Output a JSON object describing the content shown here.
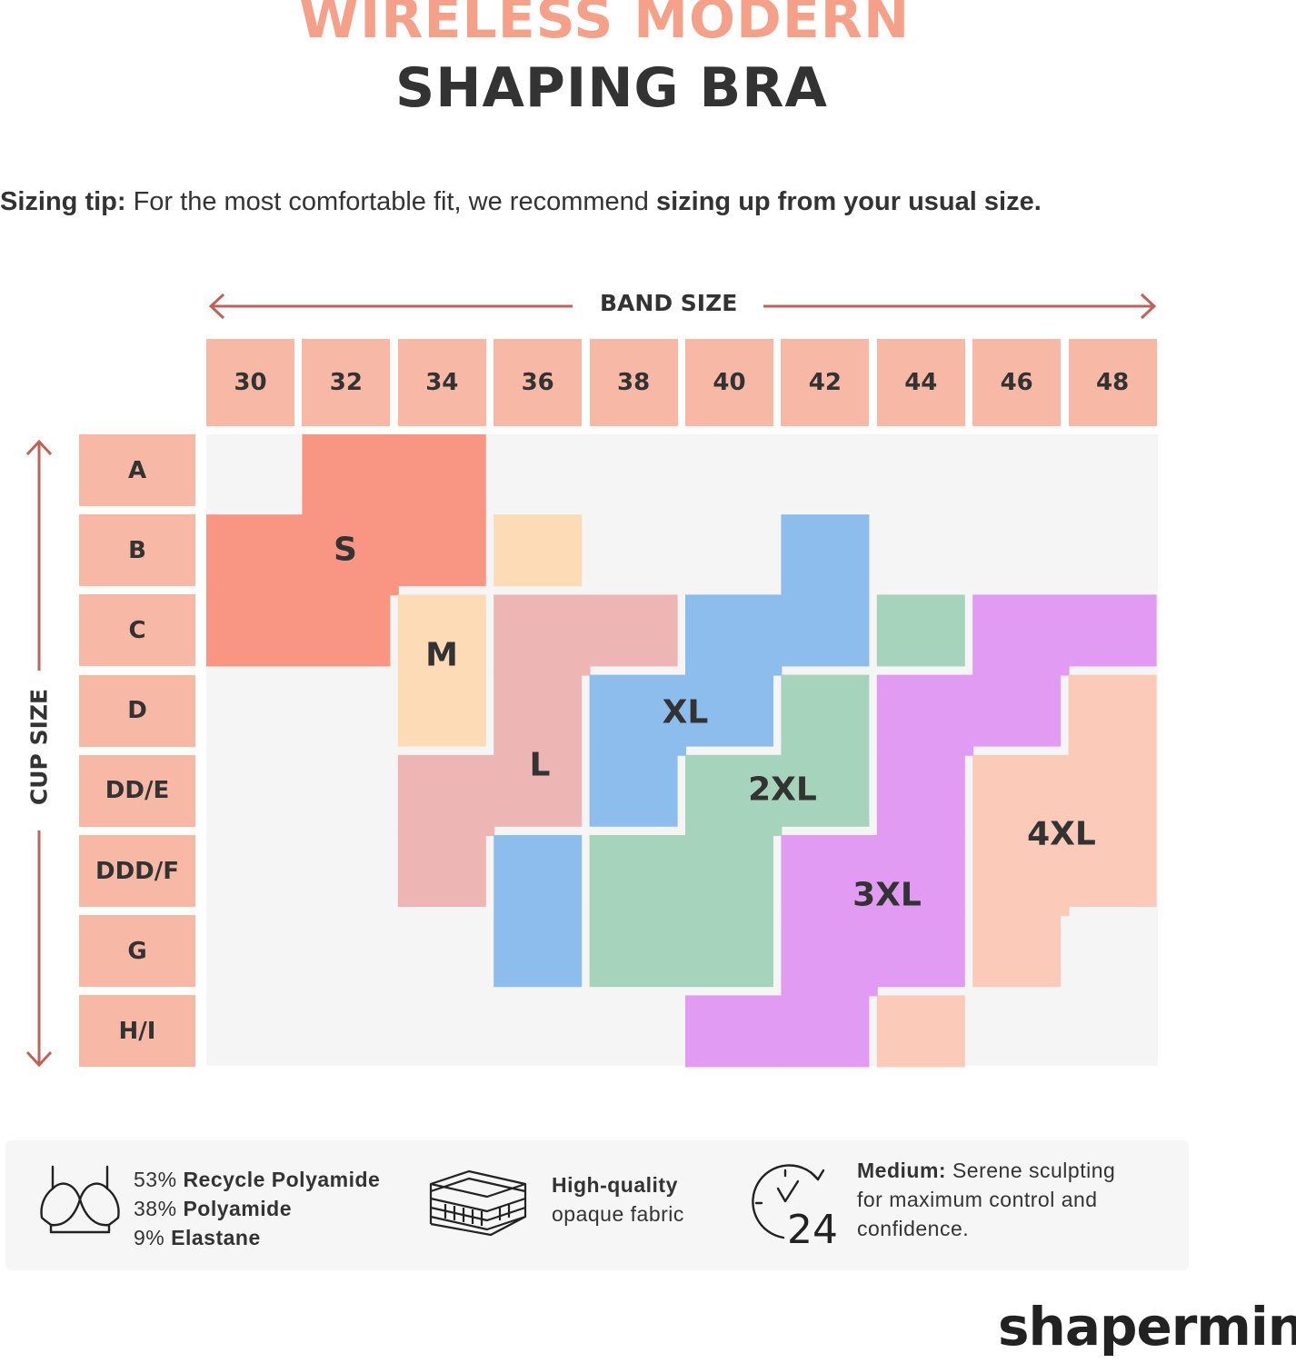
{
  "title": {
    "line1": "WIRELESS MODERN",
    "line2": "SHAPING BRA"
  },
  "sizing_tip": {
    "label": "Sizing tip:",
    "text": " For the most comfortable fit, we recommend ",
    "emphasis": "sizing up from your usual size."
  },
  "band_axis_label": "BAND SIZE",
  "cup_axis_label": "CUP SIZE",
  "band_sizes": [
    "30",
    "32",
    "34",
    "36",
    "38",
    "40",
    "42",
    "44",
    "46",
    "48"
  ],
  "cup_sizes": [
    "A",
    "B",
    "C",
    "D",
    "DD/E",
    "DDD/F",
    "G",
    "H/I"
  ],
  "size_zones": [
    {
      "label": "S",
      "color": "#f99683",
      "cells": [
        [
          "32",
          "A"
        ],
        [
          "34",
          "A"
        ],
        [
          "30",
          "B"
        ],
        [
          "32",
          "B"
        ],
        [
          "34",
          "B"
        ],
        [
          "30",
          "C"
        ],
        [
          "32",
          "C"
        ]
      ]
    },
    {
      "label": "M",
      "color": "#fddbb6",
      "cells": [
        [
          "36",
          "B"
        ],
        [
          "34",
          "C"
        ],
        [
          "34",
          "D"
        ]
      ]
    },
    {
      "label": "L",
      "color": "#edb6b4",
      "cells": [
        [
          "36",
          "C"
        ],
        [
          "38",
          "C"
        ],
        [
          "36",
          "D"
        ],
        [
          "36",
          "DD/E"
        ],
        [
          "34",
          "DD/E"
        ],
        [
          "34",
          "DDD/F"
        ]
      ]
    },
    {
      "label": "XL",
      "color": "#8dbdec",
      "cells": [
        [
          "42",
          "B"
        ],
        [
          "40",
          "C"
        ],
        [
          "42",
          "C"
        ],
        [
          "38",
          "D"
        ],
        [
          "40",
          "D"
        ],
        [
          "38",
          "DD/E"
        ],
        [
          "36",
          "DDD/F"
        ],
        [
          "36",
          "G"
        ]
      ]
    },
    {
      "label": "2XL",
      "color": "#a6d3bc",
      "cells": [
        [
          "44",
          "C"
        ],
        [
          "42",
          "D"
        ],
        [
          "40",
          "DD/E"
        ],
        [
          "42",
          "DD/E"
        ],
        [
          "38",
          "DDD/F"
        ],
        [
          "40",
          "DDD/F"
        ],
        [
          "38",
          "G"
        ],
        [
          "40",
          "G"
        ]
      ]
    },
    {
      "label": "3XL",
      "color": "#e29bf3",
      "cells": [
        [
          "46",
          "C"
        ],
        [
          "48",
          "C"
        ],
        [
          "44",
          "D"
        ],
        [
          "46",
          "D"
        ],
        [
          "44",
          "DD/E"
        ],
        [
          "42",
          "DDD/F"
        ],
        [
          "44",
          "DDD/F"
        ],
        [
          "42",
          "G"
        ],
        [
          "44",
          "G"
        ],
        [
          "40",
          "H/I"
        ],
        [
          "42",
          "H/I"
        ]
      ]
    },
    {
      "label": "4XL",
      "color": "#fbcab8",
      "cells": [
        [
          "48",
          "D"
        ],
        [
          "46",
          "DD/E"
        ],
        [
          "48",
          "DD/E"
        ],
        [
          "46",
          "DDD/F"
        ],
        [
          "48",
          "DDD/F"
        ],
        [
          "46",
          "G"
        ],
        [
          "44",
          "H/I"
        ]
      ]
    }
  ],
  "features": {
    "fabric": {
      "icon": "bra-icon",
      "l1_pct": "53% ",
      "l1_bold": "Recycle Polyamide",
      "l2_pct": "38% ",
      "l2_bold": "Polyamide",
      "l3_pct": "9% ",
      "l3_bold": "Elastane"
    },
    "quality": {
      "icon": "fabric-layers-icon",
      "bold": "High-quality",
      "text": "opaque fabric"
    },
    "control": {
      "icon": "clock-24-icon",
      "bold": "Medium:",
      "l1": " Serene sculpting",
      "l2": "for maximum control and",
      "l3": "confidence."
    }
  },
  "brand": "shapermint",
  "colors": {
    "accent": "#f5a089",
    "header_cell": "#f7b9a6",
    "arrow": "#c0625a",
    "grid_bg": "#f5f5f5"
  }
}
